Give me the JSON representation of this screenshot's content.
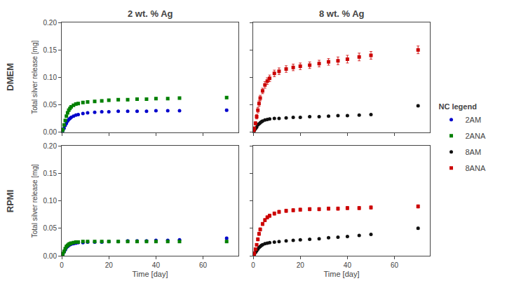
{
  "chart_data": [
    {
      "type": "scatter",
      "title": "2 wt. % Ag",
      "annotations": [
        "DMEM"
      ],
      "ylabel": "Total silver release [mg]",
      "legend": "right",
      "legend_title": "NC legend",
      "grid": false,
      "tick_labels": "y",
      "xlim": [
        0,
        75
      ],
      "ylim": [
        0.0,
        0.2
      ],
      "xticks": [
        0,
        20,
        40,
        60
      ],
      "yticks": [
        {
          "value": 0.0,
          "label": "0.00"
        },
        0.05,
        {
          "value": 0.1,
          "label": "0.10"
        },
        0.15,
        {
          "value": 0.2,
          "label": "0.20"
        }
      ],
      "series": [
        {
          "name": "2AM",
          "color": "#0000cc",
          "marker": "circle",
          "x": [
            0.3,
            0.5,
            1,
            1.5,
            2,
            2.5,
            3,
            3.5,
            4,
            5,
            6,
            7,
            9,
            11,
            14,
            17,
            20,
            24,
            28,
            32,
            36,
            40,
            45,
            50,
            70
          ],
          "values": [
            0.001,
            0.003,
            0.007,
            0.012,
            0.016,
            0.02,
            0.023,
            0.025,
            0.027,
            0.029,
            0.031,
            0.032,
            0.034,
            0.035,
            0.036,
            0.037,
            0.037,
            0.038,
            0.038,
            0.038,
            0.038,
            0.039,
            0.039,
            0.039,
            0.04
          ],
          "error": [
            0.0005,
            0.001,
            0.001,
            0.001,
            0.001,
            0.001,
            0.001,
            0.001,
            0.001,
            0.001,
            0.001,
            0.001,
            0.001,
            0.001,
            0.001,
            0.001,
            0.001,
            0.001,
            0.001,
            0.001,
            0.001,
            0.001,
            0.001,
            0.001,
            0.002
          ]
        },
        {
          "name": "2ANA",
          "color": "#008000",
          "marker": "square",
          "x": [
            0.3,
            0.5,
            1,
            1.5,
            2,
            2.5,
            3,
            3.5,
            4,
            5,
            6,
            7,
            9,
            11,
            14,
            17,
            20,
            24,
            28,
            32,
            36,
            40,
            45,
            50,
            70
          ],
          "values": [
            0.002,
            0.005,
            0.013,
            0.021,
            0.029,
            0.035,
            0.04,
            0.043,
            0.046,
            0.049,
            0.051,
            0.052,
            0.054,
            0.055,
            0.056,
            0.057,
            0.058,
            0.059,
            0.059,
            0.06,
            0.06,
            0.061,
            0.061,
            0.062,
            0.063
          ],
          "error": [
            0.001,
            0.001,
            0.001,
            0.001,
            0.001,
            0.001,
            0.001,
            0.001,
            0.001,
            0.001,
            0.002,
            0.002,
            0.002,
            0.002,
            0.002,
            0.002,
            0.002,
            0.002,
            0.002,
            0.002,
            0.002,
            0.002,
            0.002,
            0.002,
            0.002
          ]
        }
      ]
    },
    {
      "type": "scatter",
      "title": "8 wt. % Ag",
      "grid": false,
      "tick_labels": false,
      "xlim": [
        0,
        75
      ],
      "ylim": [
        0.0,
        0.2
      ],
      "xticks": [
        0,
        20,
        40,
        60
      ],
      "yticks": [
        {
          "value": 0.0,
          "label": "0.00"
        },
        0.05,
        {
          "value": 0.1,
          "label": "0.10"
        },
        0.15,
        {
          "value": 0.2,
          "label": "0.20"
        }
      ],
      "series": [
        {
          "name": "8AM",
          "color": "#111111",
          "marker": "circle",
          "x": [
            0.3,
            0.5,
            1,
            1.5,
            2,
            2.5,
            3,
            3.5,
            4,
            5,
            6,
            7,
            9,
            11,
            14,
            17,
            20,
            24,
            28,
            32,
            36,
            40,
            45,
            50,
            70
          ],
          "values": [
            0.001,
            0.003,
            0.006,
            0.009,
            0.013,
            0.015,
            0.017,
            0.019,
            0.02,
            0.022,
            0.023,
            0.024,
            0.025,
            0.025,
            0.026,
            0.027,
            0.027,
            0.028,
            0.028,
            0.029,
            0.03,
            0.03,
            0.031,
            0.032,
            0.048
          ],
          "error": [
            0.0003,
            0.0005,
            0.0005,
            0.0008,
            0.001,
            0.001,
            0.001,
            0.001,
            0.001,
            0.001,
            0.001,
            0.001,
            0.001,
            0.001,
            0.001,
            0.001,
            0.001,
            0.001,
            0.001,
            0.001,
            0.001,
            0.001,
            0.001,
            0.001,
            0.002
          ]
        },
        {
          "name": "8ANA",
          "color": "#cc0000",
          "marker": "square",
          "x": [
            0.3,
            0.5,
            1,
            1.5,
            2,
            2.5,
            3,
            4,
            5,
            6,
            7,
            9,
            11,
            14,
            17,
            20,
            24,
            28,
            32,
            36,
            40,
            45,
            50,
            70
          ],
          "values": [
            0.003,
            0.007,
            0.016,
            0.028,
            0.04,
            0.052,
            0.062,
            0.075,
            0.086,
            0.093,
            0.098,
            0.107,
            0.111,
            0.115,
            0.118,
            0.12,
            0.122,
            0.125,
            0.128,
            0.13,
            0.133,
            0.137,
            0.14,
            0.15
          ],
          "error": [
            0.001,
            0.002,
            0.003,
            0.004,
            0.005,
            0.005,
            0.005,
            0.005,
            0.006,
            0.006,
            0.006,
            0.006,
            0.006,
            0.006,
            0.006,
            0.006,
            0.006,
            0.006,
            0.006,
            0.007,
            0.007,
            0.007,
            0.007,
            0.007
          ]
        }
      ]
    },
    {
      "type": "scatter",
      "annotations": [
        "RPMI"
      ],
      "xlabel": "Time [day]",
      "ylabel": "Total silver release [mg]",
      "grid": false,
      "tick_labels": true,
      "xlim": [
        0,
        75
      ],
      "ylim": [
        0.0,
        0.2
      ],
      "xticks": [
        0,
        20,
        40,
        60
      ],
      "yticks": [
        {
          "value": 0.0,
          "label": "0.00"
        },
        0.05,
        {
          "value": 0.1,
          "label": "0.10"
        },
        0.15,
        {
          "value": 0.2,
          "label": "0.20"
        }
      ],
      "series": [
        {
          "name": "2AM",
          "color": "#0000cc",
          "marker": "circle",
          "x": [
            0.3,
            0.5,
            1,
            1.5,
            2,
            2.5,
            3,
            3.5,
            4,
            5,
            6,
            7,
            9,
            11,
            14,
            17,
            20,
            24,
            28,
            32,
            36,
            40,
            45,
            50,
            70
          ],
          "values": [
            0.001,
            0.003,
            0.007,
            0.011,
            0.015,
            0.017,
            0.019,
            0.02,
            0.021,
            0.022,
            0.023,
            0.024,
            0.024,
            0.025,
            0.025,
            0.025,
            0.026,
            0.026,
            0.027,
            0.027,
            0.027,
            0.028,
            0.028,
            0.029,
            0.032
          ],
          "error": [
            0.0005,
            0.001,
            0.001,
            0.001,
            0.001,
            0.001,
            0.001,
            0.001,
            0.001,
            0.001,
            0.001,
            0.001,
            0.001,
            0.001,
            0.001,
            0.001,
            0.001,
            0.001,
            0.001,
            0.001,
            0.001,
            0.001,
            0.001,
            0.001,
            0.002
          ]
        },
        {
          "name": "2ANA",
          "color": "#008000",
          "marker": "square",
          "x": [
            0.3,
            0.5,
            1,
            1.5,
            2,
            2.5,
            3,
            3.5,
            4,
            5,
            6,
            7,
            9,
            11,
            14,
            17,
            20,
            24,
            28,
            32,
            36,
            40,
            45,
            50,
            70
          ],
          "values": [
            0.001,
            0.004,
            0.008,
            0.013,
            0.017,
            0.019,
            0.021,
            0.022,
            0.023,
            0.024,
            0.025,
            0.025,
            0.026,
            0.026,
            0.026,
            0.026,
            0.026,
            0.026,
            0.026,
            0.026,
            0.026,
            0.026,
            0.026,
            0.026,
            0.026
          ],
          "error": [
            0.0005,
            0.001,
            0.001,
            0.001,
            0.001,
            0.001,
            0.001,
            0.001,
            0.001,
            0.001,
            0.001,
            0.001,
            0.001,
            0.001,
            0.001,
            0.001,
            0.001,
            0.001,
            0.001,
            0.001,
            0.001,
            0.001,
            0.001,
            0.001,
            0.001
          ]
        }
      ]
    },
    {
      "type": "scatter",
      "xlabel": "Time [day]",
      "grid": false,
      "tick_labels": "x",
      "xlim": [
        0,
        75
      ],
      "ylim": [
        0.0,
        0.2
      ],
      "xticks": [
        0,
        20,
        40,
        60
      ],
      "yticks": [
        {
          "value": 0.0,
          "label": "0.00"
        },
        0.05,
        {
          "value": 0.1,
          "label": "0.10"
        },
        0.15,
        {
          "value": 0.2,
          "label": "0.20"
        }
      ],
      "series": [
        {
          "name": "8AM",
          "color": "#111111",
          "marker": "circle",
          "x": [
            0.3,
            0.5,
            1,
            1.5,
            2,
            2.5,
            3,
            3.5,
            4,
            5,
            6,
            7,
            9,
            11,
            14,
            17,
            20,
            24,
            28,
            32,
            36,
            40,
            45,
            50,
            70
          ],
          "values": [
            0.001,
            0.003,
            0.006,
            0.009,
            0.012,
            0.015,
            0.017,
            0.019,
            0.02,
            0.022,
            0.023,
            0.024,
            0.025,
            0.026,
            0.027,
            0.028,
            0.029,
            0.03,
            0.031,
            0.033,
            0.034,
            0.035,
            0.037,
            0.039,
            0.05
          ],
          "error": [
            0.0003,
            0.0005,
            0.0005,
            0.001,
            0.001,
            0.001,
            0.001,
            0.001,
            0.001,
            0.001,
            0.001,
            0.001,
            0.001,
            0.001,
            0.001,
            0.001,
            0.001,
            0.001,
            0.001,
            0.001,
            0.001,
            0.001,
            0.001,
            0.001,
            0.002
          ]
        },
        {
          "name": "8ANA",
          "color": "#cc0000",
          "marker": "square",
          "x": [
            0.3,
            0.5,
            1,
            1.5,
            2,
            2.5,
            3,
            4,
            5,
            6,
            7,
            9,
            11,
            14,
            17,
            20,
            24,
            28,
            32,
            36,
            40,
            45,
            50,
            70
          ],
          "values": [
            0.002,
            0.005,
            0.012,
            0.02,
            0.03,
            0.04,
            0.048,
            0.058,
            0.065,
            0.07,
            0.073,
            0.077,
            0.08,
            0.082,
            0.083,
            0.084,
            0.085,
            0.085,
            0.086,
            0.086,
            0.087,
            0.087,
            0.088,
            0.09
          ],
          "error": [
            0.001,
            0.001,
            0.002,
            0.002,
            0.003,
            0.003,
            0.003,
            0.003,
            0.003,
            0.003,
            0.003,
            0.003,
            0.003,
            0.003,
            0.003,
            0.003,
            0.003,
            0.003,
            0.003,
            0.003,
            0.003,
            0.003,
            0.003,
            0.003
          ]
        }
      ]
    }
  ]
}
